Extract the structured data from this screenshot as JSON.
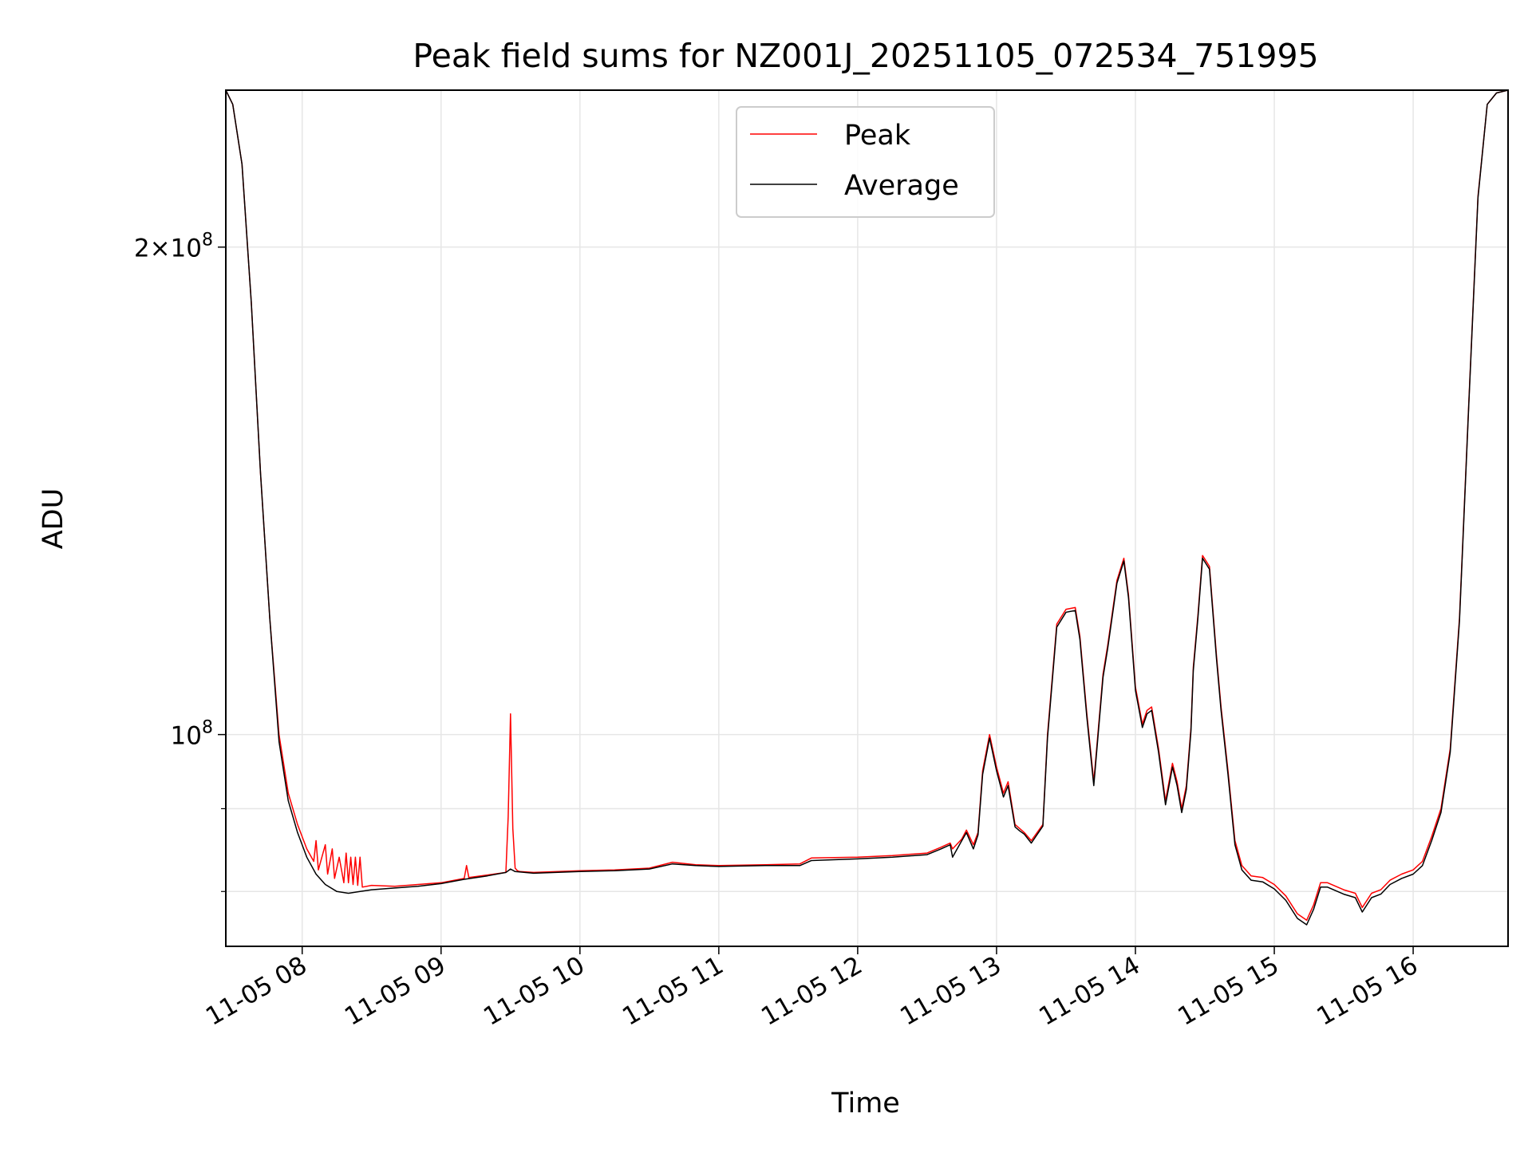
{
  "chart_data": {
    "type": "line",
    "title": "Peak field sums for NZ001J_20251105_072534_751995",
    "xlabel": "Time",
    "ylabel": "ADU",
    "yscale": "log",
    "grid": true,
    "legend_position": "top-center",
    "xlim": [
      "2025-11-05 07:27",
      "2025-11-05 16:41"
    ],
    "ylim": [
      74000000,
      250000000
    ],
    "x_ticks": [
      {
        "value": "2025-11-05 08:00",
        "label": "11-05 08"
      },
      {
        "value": "2025-11-05 09:00",
        "label": "11-05 09"
      },
      {
        "value": "2025-11-05 10:00",
        "label": "11-05 10"
      },
      {
        "value": "2025-11-05 11:00",
        "label": "11-05 11"
      },
      {
        "value": "2025-11-05 12:00",
        "label": "11-05 12"
      },
      {
        "value": "2025-11-05 13:00",
        "label": "11-05 13"
      },
      {
        "value": "2025-11-05 14:00",
        "label": "11-05 14"
      },
      {
        "value": "2025-11-05 15:00",
        "label": "11-05 15"
      },
      {
        "value": "2025-11-05 16:00",
        "label": "11-05 16"
      }
    ],
    "y_major_ticks": [
      {
        "value": 100000000,
        "mantissa": "",
        "exponent": "8"
      },
      {
        "value": 200000000,
        "mantissa": "2",
        "exponent": "8"
      }
    ],
    "y_minor_ticks": [
      80000000,
      90000000
    ],
    "series": [
      {
        "name": "Peak",
        "color": "#ff0000",
        "x": [
          "2025-11-05 07:27",
          "2025-11-05 07:30",
          "2025-11-05 07:34",
          "2025-11-05 07:38",
          "2025-11-05 07:42",
          "2025-11-05 07:46",
          "2025-11-05 07:50",
          "2025-11-05 07:54",
          "2025-11-05 07:58",
          "2025-11-05 08:02",
          "2025-11-05 08:05",
          "2025-11-05 08:06",
          "2025-11-05 08:07",
          "2025-11-05 08:10",
          "2025-11-05 08:11",
          "2025-11-05 08:13",
          "2025-11-05 08:14",
          "2025-11-05 08:16",
          "2025-11-05 08:18",
          "2025-11-05 08:19",
          "2025-11-05 08:20",
          "2025-11-05 08:21",
          "2025-11-05 08:22",
          "2025-11-05 08:23",
          "2025-11-05 08:24",
          "2025-11-05 08:25",
          "2025-11-05 08:26",
          "2025-11-05 08:30",
          "2025-11-05 08:40",
          "2025-11-05 08:50",
          "2025-11-05 09:00",
          "2025-11-05 09:10",
          "2025-11-05 09:11",
          "2025-11-05 09:12",
          "2025-11-05 09:20",
          "2025-11-05 09:28",
          "2025-11-05 09:29",
          "2025-11-05 09:30",
          "2025-11-05 09:31",
          "2025-11-05 09:32",
          "2025-11-05 09:33",
          "2025-11-05 09:34",
          "2025-11-05 09:40",
          "2025-11-05 10:00",
          "2025-11-05 10:15",
          "2025-11-05 10:30",
          "2025-11-05 10:40",
          "2025-11-05 10:50",
          "2025-11-05 11:00",
          "2025-11-05 11:20",
          "2025-11-05 11:35",
          "2025-11-05 11:40",
          "2025-11-05 12:00",
          "2025-11-05 12:15",
          "2025-11-05 12:30",
          "2025-11-05 12:36",
          "2025-11-05 12:40",
          "2025-11-05 12:41",
          "2025-11-05 12:45",
          "2025-11-05 12:47",
          "2025-11-05 12:50",
          "2025-11-05 12:52",
          "2025-11-05 12:54",
          "2025-11-05 12:57",
          "2025-11-05 13:00",
          "2025-11-05 13:03",
          "2025-11-05 13:05",
          "2025-11-05 13:08",
          "2025-11-05 13:10",
          "2025-11-05 13:12",
          "2025-11-05 13:15",
          "2025-11-05 13:20",
          "2025-11-05 13:22",
          "2025-11-05 13:26",
          "2025-11-05 13:30",
          "2025-11-05 13:34",
          "2025-11-05 13:36",
          "2025-11-05 13:39",
          "2025-11-05 13:42",
          "2025-11-05 13:46",
          "2025-11-05 13:48",
          "2025-11-05 13:52",
          "2025-11-05 13:55",
          "2025-11-05 13:57",
          "2025-11-05 14:00",
          "2025-11-05 14:03",
          "2025-11-05 14:05",
          "2025-11-05 14:07",
          "2025-11-05 14:10",
          "2025-11-05 14:13",
          "2025-11-05 14:16",
          "2025-11-05 14:18",
          "2025-11-05 14:20",
          "2025-11-05 14:22",
          "2025-11-05 14:24",
          "2025-11-05 14:25",
          "2025-11-05 14:27",
          "2025-11-05 14:29",
          "2025-11-05 14:32",
          "2025-11-05 14:35",
          "2025-11-05 14:37",
          "2025-11-05 14:40",
          "2025-11-05 14:43",
          "2025-11-05 14:46",
          "2025-11-05 14:50",
          "2025-11-05 14:55",
          "2025-11-05 15:00",
          "2025-11-05 15:05",
          "2025-11-05 15:10",
          "2025-11-05 15:14",
          "2025-11-05 15:17",
          "2025-11-05 15:20",
          "2025-11-05 15:23",
          "2025-11-05 15:30",
          "2025-11-05 15:35",
          "2025-11-05 15:38",
          "2025-11-05 15:42",
          "2025-11-05 15:46",
          "2025-11-05 15:50",
          "2025-11-05 15:55",
          "2025-11-05 16:00",
          "2025-11-05 16:04",
          "2025-11-05 16:08",
          "2025-11-05 16:12",
          "2025-11-05 16:16",
          "2025-11-05 16:20",
          "2025-11-05 16:24",
          "2025-11-05 16:28",
          "2025-11-05 16:32",
          "2025-11-05 16:36",
          "2025-11-05 16:41"
        ],
        "y": [
          250000000,
          245000000,
          225000000,
          185000000,
          145000000,
          118000000,
          100000000,
          92000000,
          88000000,
          85000000,
          83500000,
          86000000,
          82500000,
          85500000,
          82000000,
          85000000,
          81500000,
          84000000,
          81000000,
          84500000,
          81000000,
          84000000,
          80800000,
          84000000,
          80700000,
          84000000,
          80500000,
          80700000,
          80600000,
          80800000,
          81000000,
          81500000,
          83000000,
          81600000,
          81900000,
          82200000,
          89000000,
          103000000,
          87500000,
          82700000,
          82400000,
          82300000,
          82200000,
          82400000,
          82500000,
          82700000,
          83400000,
          83100000,
          83000000,
          83100000,
          83200000,
          83900000,
          84000000,
          84200000,
          84500000,
          85200000,
          85700000,
          85000000,
          86200000,
          87300000,
          85500000,
          87000000,
          95000000,
          100000000,
          95500000,
          92000000,
          93500000,
          88000000,
          87500000,
          87000000,
          86000000,
          88000000,
          100000000,
          117000000,
          119500000,
          119800000,
          115000000,
          103000000,
          93500000,
          109000000,
          113500000,
          124500000,
          128500000,
          122000000,
          107000000,
          101500000,
          103500000,
          104000000,
          98000000,
          91000000,
          96000000,
          93500000,
          90000000,
          93000000,
          101000000,
          110000000,
          118500000,
          129000000,
          127000000,
          112000000,
          104000000,
          95000000,
          86000000,
          83000000,
          81800000,
          81600000,
          80800000,
          79500000,
          77500000,
          76800000,
          78500000,
          81000000,
          81000000,
          80200000,
          79800000,
          78200000,
          79800000,
          80200000,
          81300000,
          82000000,
          82500000,
          83500000,
          86500000,
          90000000,
          98000000,
          118000000,
          160000000,
          215000000,
          245000000,
          249000000,
          250000000
        ]
      },
      {
        "name": "Average",
        "color": "#000000",
        "x": [
          "2025-11-05 07:27",
          "2025-11-05 07:30",
          "2025-11-05 07:34",
          "2025-11-05 07:38",
          "2025-11-05 07:42",
          "2025-11-05 07:46",
          "2025-11-05 07:50",
          "2025-11-05 07:54",
          "2025-11-05 07:58",
          "2025-11-05 08:02",
          "2025-11-05 08:06",
          "2025-11-05 08:10",
          "2025-11-05 08:15",
          "2025-11-05 08:20",
          "2025-11-05 08:25",
          "2025-11-05 08:30",
          "2025-11-05 08:40",
          "2025-11-05 08:50",
          "2025-11-05 09:00",
          "2025-11-05 09:10",
          "2025-11-05 09:20",
          "2025-11-05 09:28",
          "2025-11-05 09:30",
          "2025-11-05 09:32",
          "2025-11-05 09:40",
          "2025-11-05 10:00",
          "2025-11-05 10:15",
          "2025-11-05 10:30",
          "2025-11-05 10:40",
          "2025-11-05 10:50",
          "2025-11-05 11:00",
          "2025-11-05 11:20",
          "2025-11-05 11:35",
          "2025-11-05 11:40",
          "2025-11-05 12:00",
          "2025-11-05 12:15",
          "2025-11-05 12:30",
          "2025-11-05 12:36",
          "2025-11-05 12:40",
          "2025-11-05 12:41",
          "2025-11-05 12:45",
          "2025-11-05 12:47",
          "2025-11-05 12:50",
          "2025-11-05 12:52",
          "2025-11-05 12:54",
          "2025-11-05 12:57",
          "2025-11-05 13:00",
          "2025-11-05 13:03",
          "2025-11-05 13:05",
          "2025-11-05 13:08",
          "2025-11-05 13:10",
          "2025-11-05 13:12",
          "2025-11-05 13:15",
          "2025-11-05 13:20",
          "2025-11-05 13:22",
          "2025-11-05 13:26",
          "2025-11-05 13:30",
          "2025-11-05 13:34",
          "2025-11-05 13:36",
          "2025-11-05 13:39",
          "2025-11-05 13:42",
          "2025-11-05 13:46",
          "2025-11-05 13:48",
          "2025-11-05 13:52",
          "2025-11-05 13:55",
          "2025-11-05 13:57",
          "2025-11-05 14:00",
          "2025-11-05 14:03",
          "2025-11-05 14:05",
          "2025-11-05 14:07",
          "2025-11-05 14:10",
          "2025-11-05 14:13",
          "2025-11-05 14:16",
          "2025-11-05 14:18",
          "2025-11-05 14:20",
          "2025-11-05 14:22",
          "2025-11-05 14:24",
          "2025-11-05 14:25",
          "2025-11-05 14:27",
          "2025-11-05 14:29",
          "2025-11-05 14:32",
          "2025-11-05 14:35",
          "2025-11-05 14:37",
          "2025-11-05 14:40",
          "2025-11-05 14:43",
          "2025-11-05 14:46",
          "2025-11-05 14:50",
          "2025-11-05 14:55",
          "2025-11-05 15:00",
          "2025-11-05 15:05",
          "2025-11-05 15:10",
          "2025-11-05 15:14",
          "2025-11-05 15:17",
          "2025-11-05 15:20",
          "2025-11-05 15:23",
          "2025-11-05 15:30",
          "2025-11-05 15:35",
          "2025-11-05 15:38",
          "2025-11-05 15:42",
          "2025-11-05 15:46",
          "2025-11-05 15:50",
          "2025-11-05 15:55",
          "2025-11-05 16:00",
          "2025-11-05 16:04",
          "2025-11-05 16:08",
          "2025-11-05 16:12",
          "2025-11-05 16:16",
          "2025-11-05 16:20",
          "2025-11-05 16:24",
          "2025-11-05 16:28",
          "2025-11-05 16:32",
          "2025-11-05 16:36",
          "2025-11-05 16:41"
        ],
        "y": [
          250000000,
          245000000,
          225000000,
          185000000,
          145000000,
          118000000,
          99000000,
          91000000,
          87000000,
          84000000,
          82000000,
          80800000,
          80000000,
          79800000,
          80000000,
          80200000,
          80400000,
          80600000,
          80900000,
          81400000,
          81800000,
          82200000,
          82600000,
          82300000,
          82100000,
          82300000,
          82400000,
          82600000,
          83200000,
          83000000,
          82900000,
          83000000,
          83000000,
          83600000,
          83800000,
          84000000,
          84300000,
          85000000,
          85500000,
          84000000,
          86000000,
          87000000,
          85000000,
          86700000,
          94500000,
          99500000,
          95000000,
          91500000,
          93000000,
          87700000,
          87200000,
          86800000,
          85700000,
          87800000,
          99500000,
          116500000,
          119000000,
          119300000,
          114500000,
          102500000,
          93000000,
          108500000,
          113000000,
          124000000,
          128000000,
          121500000,
          106500000,
          101000000,
          103000000,
          103500000,
          97500000,
          90500000,
          95500000,
          93000000,
          89500000,
          92500000,
          100500000,
          109500000,
          118000000,
          128500000,
          126500000,
          111500000,
          103500000,
          94500000,
          85500000,
          82500000,
          81300000,
          81100000,
          80300000,
          79000000,
          77000000,
          76300000,
          78000000,
          80500000,
          80500000,
          79700000,
          79300000,
          77700000,
          79300000,
          79700000,
          80800000,
          81500000,
          82000000,
          83000000,
          86000000,
          89500000,
          97500000,
          117500000,
          159500000,
          214500000,
          245000000,
          249000000,
          250000000
        ]
      }
    ]
  }
}
